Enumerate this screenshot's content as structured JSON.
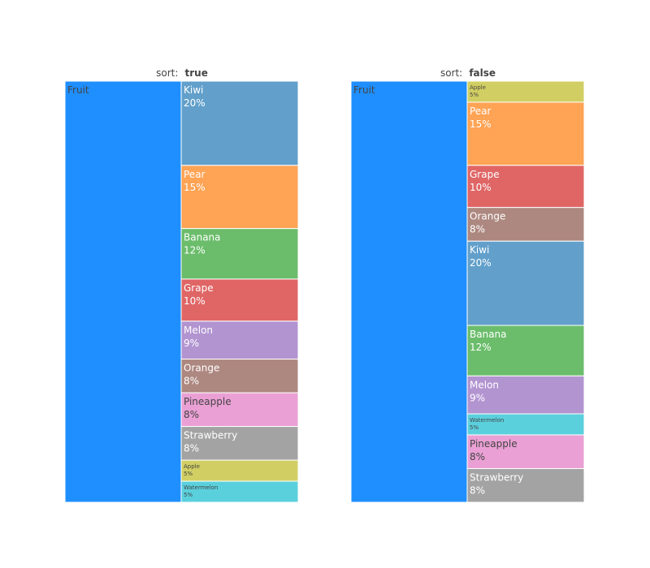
{
  "chart_data": [
    {
      "type": "icicle",
      "title_prefix": "sort:",
      "title_value": "true",
      "root": {
        "label": "Fruit",
        "color": "#1f8fff"
      },
      "items": [
        {
          "label": "Kiwi",
          "percent": "20%",
          "value": 20,
          "color": "#62a0cb"
        },
        {
          "label": "Pear",
          "percent": "15%",
          "value": 15,
          "color": "#ffa354"
        },
        {
          "label": "Banana",
          "percent": "12%",
          "value": 12,
          "color": "#6bbd6b"
        },
        {
          "label": "Grape",
          "percent": "10%",
          "value": 10,
          "color": "#e06666"
        },
        {
          "label": "Melon",
          "percent": "9%",
          "value": 9,
          "color": "#b294d1"
        },
        {
          "label": "Orange",
          "percent": "8%",
          "value": 8,
          "color": "#ad8880"
        },
        {
          "label": "Pineapple",
          "percent": "8%",
          "value": 8,
          "color": "#eaa0d4"
        },
        {
          "label": "Strawberry",
          "percent": "8%",
          "value": 8,
          "color": "#a3a3a3"
        },
        {
          "label": "Apple",
          "percent": "5%",
          "value": 5,
          "color": "#d1cf63"
        },
        {
          "label": "Watermelon",
          "percent": "5%",
          "value": 5,
          "color": "#5bd0dd"
        }
      ]
    },
    {
      "type": "icicle",
      "title_prefix": "sort:",
      "title_value": "false",
      "root": {
        "label": "Fruit",
        "color": "#1f8fff"
      },
      "items": [
        {
          "label": "Apple",
          "percent": "5%",
          "value": 5,
          "color": "#d1cf63"
        },
        {
          "label": "Pear",
          "percent": "15%",
          "value": 15,
          "color": "#ffa354"
        },
        {
          "label": "Grape",
          "percent": "10%",
          "value": 10,
          "color": "#e06666"
        },
        {
          "label": "Orange",
          "percent": "8%",
          "value": 8,
          "color": "#ad8880"
        },
        {
          "label": "Kiwi",
          "percent": "20%",
          "value": 20,
          "color": "#62a0cb"
        },
        {
          "label": "Banana",
          "percent": "12%",
          "value": 12,
          "color": "#6bbd6b"
        },
        {
          "label": "Melon",
          "percent": "9%",
          "value": 9,
          "color": "#b294d1"
        },
        {
          "label": "Watermelon",
          "percent": "5%",
          "value": 5,
          "color": "#5bd0dd"
        },
        {
          "label": "Pineapple",
          "percent": "8%",
          "value": 8,
          "color": "#eaa0d4"
        },
        {
          "label": "Strawberry",
          "percent": "8%",
          "value": 8,
          "color": "#a3a3a3"
        }
      ]
    }
  ]
}
